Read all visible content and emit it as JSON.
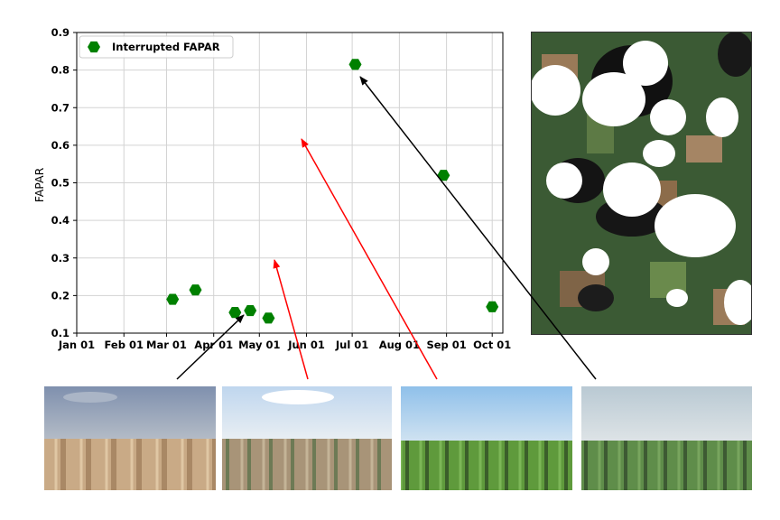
{
  "chart_data": {
    "type": "scatter",
    "ylabel": "FAPAR",
    "ylim": [
      0.1,
      0.9
    ],
    "yticks": [
      0.1,
      0.2,
      0.3,
      0.4,
      0.5,
      0.6,
      0.7,
      0.8,
      0.9
    ],
    "ytick_labels": [
      "0.1",
      "0.2",
      "0.3",
      "0.4",
      "0.5",
      "0.6",
      "0.7",
      "0.8",
      "0.9"
    ],
    "xlim": [
      "2018-01-01",
      "2018-10-08"
    ],
    "xticks": [
      "2018-01-01",
      "2018-02-01",
      "2018-03-01",
      "2018-04-01",
      "2018-05-01",
      "2018-06-01",
      "2018-07-01",
      "2018-08-01",
      "2018-09-01",
      "2018-10-01"
    ],
    "xtick_labels": [
      "Jan 01",
      "Feb 01",
      "Mar 01",
      "Apr 01",
      "May 01",
      "Jun 01",
      "Jul 01",
      "Aug 01",
      "Sep 01",
      "Oct 01"
    ],
    "grid": true,
    "legend_position": "top-left",
    "series": [
      {
        "name": "Interrupted FAPAR",
        "color": "#008000",
        "marker": "hexagon",
        "points": [
          {
            "x": "2018-03-05",
            "y": 0.19
          },
          {
            "x": "2018-03-20",
            "y": 0.215
          },
          {
            "x": "2018-04-15",
            "y": 0.155
          },
          {
            "x": "2018-04-25",
            "y": 0.16
          },
          {
            "x": "2018-05-07",
            "y": 0.14
          },
          {
            "x": "2018-07-03",
            "y": 0.815
          },
          {
            "x": "2018-08-30",
            "y": 0.52
          },
          {
            "x": "2018-10-01",
            "y": 0.17
          }
        ]
      }
    ]
  },
  "annotations": {
    "arrow_colors": {
      "black": "#000000",
      "red": "#ff0000"
    },
    "photos": [
      {
        "name": "photo-bare-soil-rows",
        "sky": "#8d9cb6",
        "soil": "#c4a582"
      },
      {
        "name": "photo-emerging-crop",
        "sky": "#c9ddef",
        "soil": "#9c8c73"
      },
      {
        "name": "photo-young-crop",
        "sky": "#9cc6ea",
        "crop": "#5e9a3e"
      },
      {
        "name": "photo-mature-crop",
        "sky": "#c2cfd6",
        "crop": "#5c8a4a"
      }
    ],
    "satellite_image": {
      "name": "cloudy-satellite-image"
    }
  }
}
